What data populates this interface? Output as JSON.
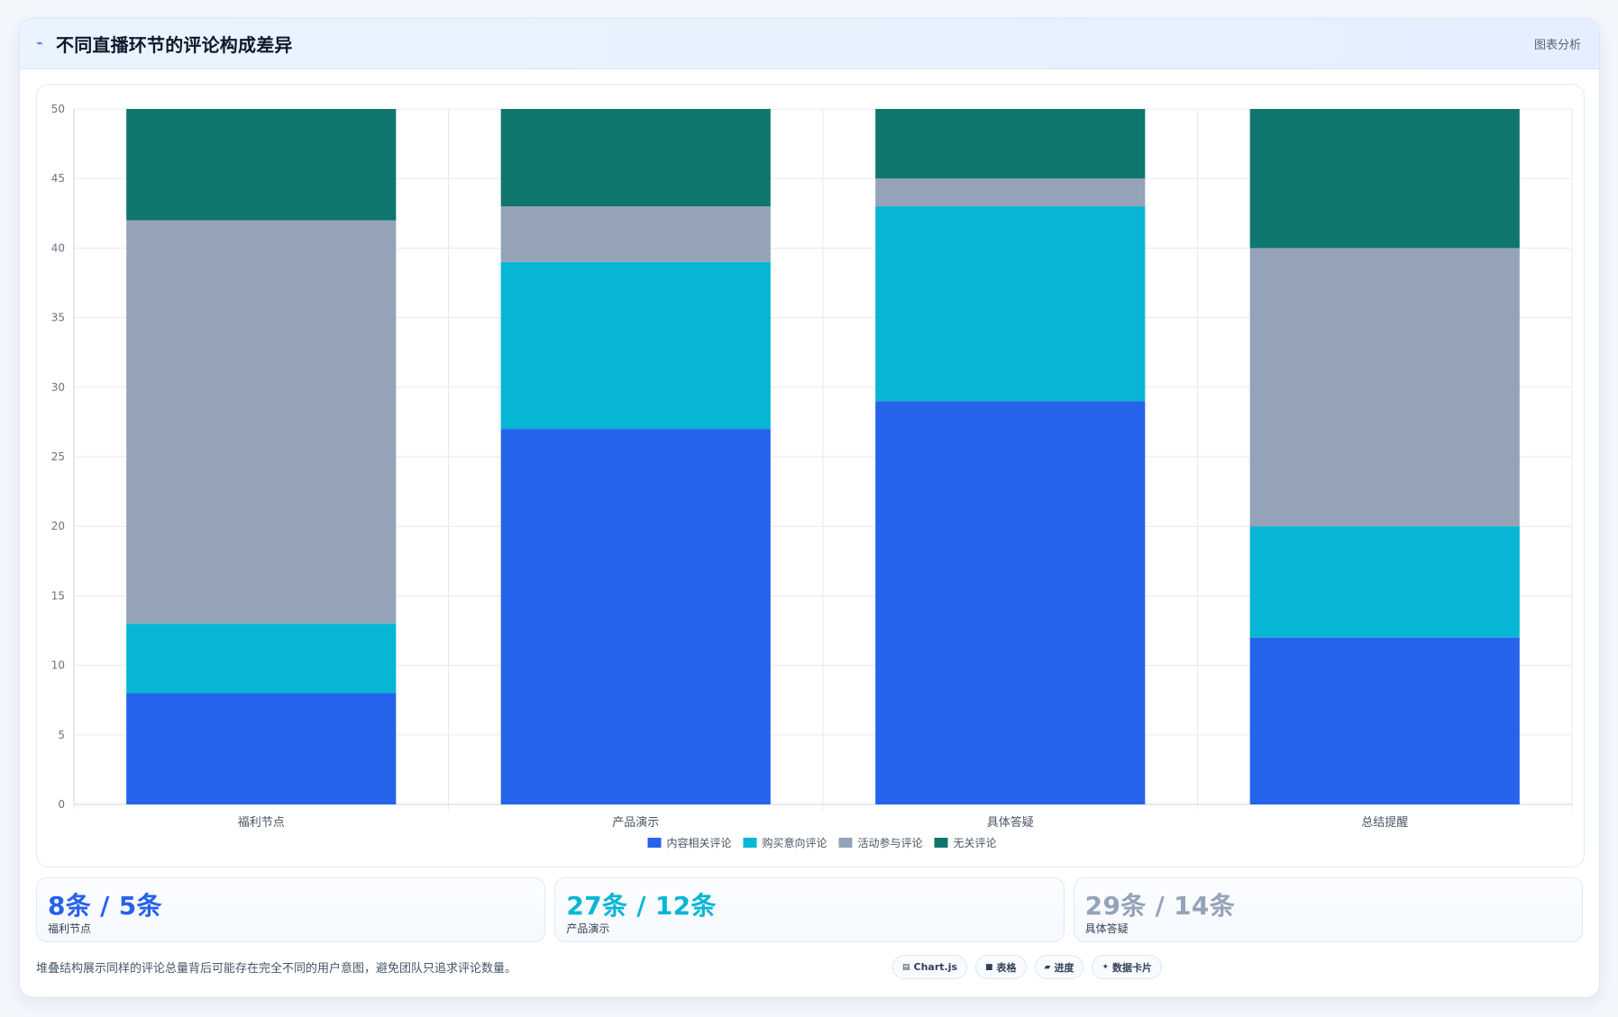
{
  "header": {
    "title": "不同直播环节的评论构成差异",
    "icon": "line-chart-icon",
    "action": "图表分析"
  },
  "chart_data": {
    "type": "bar",
    "stacked": true,
    "categories": [
      "福利节点",
      "产品演示",
      "具体答疑",
      "总结提醒"
    ],
    "series": [
      {
        "name": "内容相关评论",
        "color": "#2563eb",
        "values": [
          8,
          27,
          29,
          12
        ]
      },
      {
        "name": "购买意向评论",
        "color": "#06b6d4",
        "values": [
          5,
          12,
          14,
          8
        ]
      },
      {
        "name": "活动参与评论",
        "color": "#94a3b8",
        "values": [
          29,
          4,
          2,
          20
        ]
      },
      {
        "name": "无关评论",
        "color": "#0f766e",
        "values": [
          8,
          7,
          5,
          10
        ]
      }
    ],
    "ylim": [
      0,
      50
    ],
    "yticks": [
      0,
      5,
      10,
      15,
      20,
      25,
      30,
      35,
      40,
      45,
      50
    ],
    "grid": true,
    "legend_position": "bottom"
  },
  "stats": [
    {
      "value": "8条 / 5条",
      "label": "福利节点",
      "color": "#2563eb"
    },
    {
      "value": "27条 / 12条",
      "label": "产品演示",
      "color": "#06b6d4"
    },
    {
      "value": "29条 / 14条",
      "label": "具体答疑",
      "color": "#94a3b8"
    }
  ],
  "footer": {
    "note": "堆叠结构展示同样的评论总量背后可能存在完全不同的用户意图，避免团队只追求评论数量。",
    "tags": [
      {
        "label": "Chart.js",
        "icon": "chart-icon"
      },
      {
        "label": "表格",
        "icon": "table-icon"
      },
      {
        "label": "进度",
        "icon": "progress-icon"
      },
      {
        "label": "数据卡片",
        "icon": "sparkle-icon"
      }
    ]
  }
}
